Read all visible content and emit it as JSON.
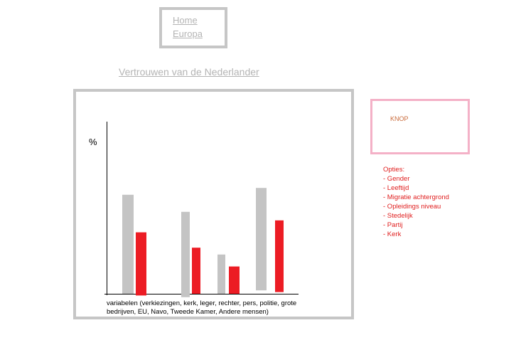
{
  "nav": {
    "home_label": "Home",
    "europa_label": "Europa"
  },
  "page": {
    "title": "Vertrouwen van de Nederlander"
  },
  "chart_data": {
    "type": "bar",
    "title": "",
    "ylabel": "%",
    "xlabel": "variabelen (verkiezingen, kerk, leger, rechter, pers, politie, grote bedrijven, EU, Navo, Tweede Kamer, Andere mensen)",
    "ylim": [
      0,
      100
    ],
    "grid": false,
    "categories": [
      "",
      "",
      "",
      ""
    ],
    "series": [
      {
        "color": "#c4c4c4",
        "bars": [
          {
            "bottom": 0,
            "top": 58
          },
          {
            "bottom": -2,
            "top": 48
          },
          {
            "bottom": 0,
            "top": 23
          },
          {
            "bottom": 2,
            "top": 62
          }
        ]
      },
      {
        "color": "#ec1c24",
        "bars": [
          {
            "bottom": -1,
            "top": 36
          },
          {
            "bottom": 0,
            "top": 27
          },
          {
            "bottom": 0,
            "top": 16
          },
          {
            "bottom": 1,
            "top": 43
          }
        ]
      }
    ]
  },
  "side": {
    "knop_label": "KNOP",
    "options_title": "Opties:",
    "options": [
      "- Gender",
      "- Leeftijd",
      "- Migratie achtergrond",
      "- Opleidings niveau",
      "- Stedelijk",
      "- Partij",
      "- Kerk"
    ]
  }
}
